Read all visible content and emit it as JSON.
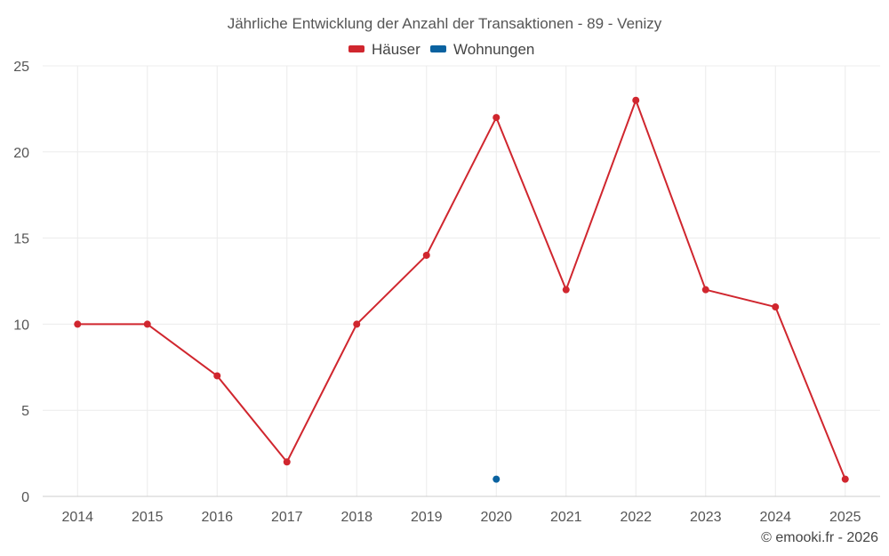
{
  "chart_data": {
    "type": "line",
    "title": "Jährliche Entwicklung der Anzahl der Transaktionen - 89 - Venizy",
    "categories": [
      "2014",
      "2015",
      "2016",
      "2017",
      "2018",
      "2019",
      "2020",
      "2021",
      "2022",
      "2023",
      "2024",
      "2025"
    ],
    "series": [
      {
        "name": "Häuser",
        "color": "#d0262e",
        "values": [
          10,
          10,
          7,
          2,
          10,
          14,
          22,
          12,
          23,
          12,
          11,
          1
        ]
      },
      {
        "name": "Wohnungen",
        "color": "#0a62a0",
        "values": [
          null,
          null,
          null,
          null,
          null,
          null,
          1,
          null,
          null,
          null,
          null,
          null
        ]
      }
    ],
    "ylim": [
      0,
      25
    ],
    "yticks": [
      0,
      5,
      10,
      15,
      20,
      25
    ],
    "grid": true,
    "legend_position": "top-center"
  },
  "credit": "© emooki.fr - 2026"
}
